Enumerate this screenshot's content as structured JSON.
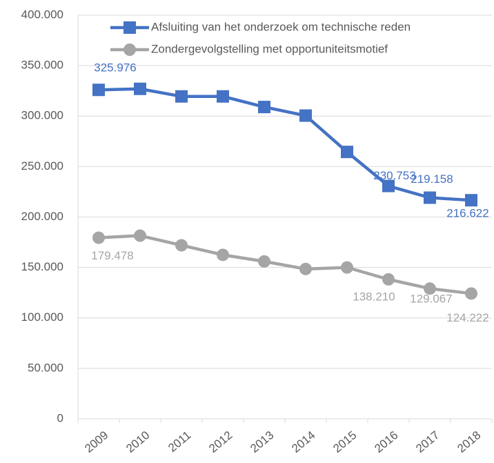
{
  "chart_data": {
    "type": "line",
    "categories": [
      "2009",
      "2010",
      "2011",
      "2012",
      "2013",
      "2014",
      "2015",
      "2016",
      "2017",
      "2018"
    ],
    "series": [
      {
        "name": "Afsluiting van het onderzoek om technische reden",
        "color": "#4472c4",
        "marker": "square",
        "values": [
          325976,
          327000,
          319500,
          319500,
          309000,
          300500,
          264500,
          230753,
          219158,
          216622
        ],
        "value_labels": [
          "325.976",
          null,
          null,
          null,
          null,
          null,
          null,
          "230.753",
          "219.158",
          "216.622"
        ]
      },
      {
        "name": "Zondergevolgstelling met opportuniteitsmotief",
        "color": "#a5a5a5",
        "marker": "circle",
        "values": [
          179478,
          181500,
          172000,
          162500,
          156000,
          148500,
          150000,
          138210,
          129067,
          124222
        ],
        "value_labels": [
          "179.478",
          null,
          null,
          null,
          null,
          null,
          null,
          "138.210",
          "129.067",
          "124.222"
        ]
      }
    ],
    "ylim": [
      0,
      400000
    ],
    "yticks": [
      0,
      {
        "value": 50000,
        "label": "50.000"
      },
      {
        "value": 100000,
        "label": "100.000"
      },
      {
        "value": 150000,
        "label": "150.000"
      },
      {
        "value": 200000,
        "label": "200.000"
      },
      {
        "value": 250000,
        "label": "250.000"
      },
      {
        "value": 300000,
        "label": "300.000"
      },
      {
        "value": 350000,
        "label": "350.000"
      },
      {
        "value": 400000,
        "label": "400.000"
      }
    ],
    "grid": true,
    "legend": "top"
  }
}
